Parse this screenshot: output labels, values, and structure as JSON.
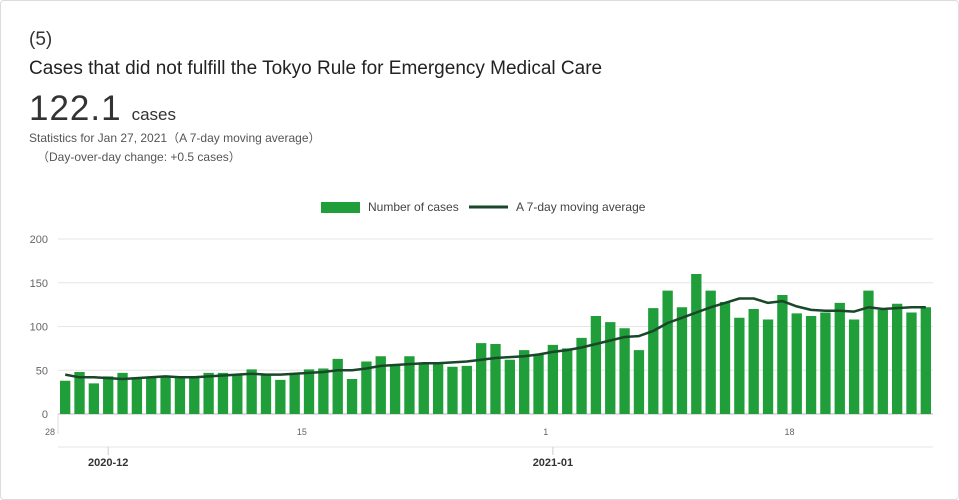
{
  "header": {
    "number": "(5)",
    "title": "Cases that did not fulfill the Tokyo Rule for Emergency Medical Care",
    "value": "122.1",
    "unit": "cases",
    "stats_line": "Statistics for Jan 27, 2021（A 7-day moving average）",
    "change_line": "（Day-over-day change: +0.5 cases）"
  },
  "colors": {
    "bar": "#1f9e3a",
    "line": "#1a472a"
  },
  "chart_data": {
    "type": "bar",
    "legend": [
      {
        "name": "Number of cases",
        "kind": "bar"
      },
      {
        "name": "A 7-day moving average",
        "kind": "line"
      }
    ],
    "legend_position": "top-center",
    "ylim": [
      0,
      200
    ],
    "yticks": [
      0,
      50,
      100,
      150,
      200
    ],
    "grid": true,
    "x_day_ticks": [
      {
        "index": 0,
        "label": "28"
      },
      {
        "index": 17,
        "label": "15"
      },
      {
        "index": 34,
        "label": "1"
      },
      {
        "index": 51,
        "label": "18"
      }
    ],
    "x_month_labels": [
      {
        "index": 3,
        "label": "2020-12"
      },
      {
        "index": 34,
        "label": "2021-01"
      }
    ],
    "dates": [
      "2020-11-28",
      "2020-11-29",
      "2020-11-30",
      "2020-12-01",
      "2020-12-02",
      "2020-12-03",
      "2020-12-04",
      "2020-12-05",
      "2020-12-06",
      "2020-12-07",
      "2020-12-08",
      "2020-12-09",
      "2020-12-10",
      "2020-12-11",
      "2020-12-12",
      "2020-12-13",
      "2020-12-14",
      "2020-12-15",
      "2020-12-16",
      "2020-12-17",
      "2020-12-18",
      "2020-12-19",
      "2020-12-20",
      "2020-12-21",
      "2020-12-22",
      "2020-12-23",
      "2020-12-24",
      "2020-12-25",
      "2020-12-26",
      "2020-12-27",
      "2020-12-28",
      "2020-12-29",
      "2020-12-30",
      "2020-12-31",
      "2021-01-01",
      "2021-01-02",
      "2021-01-03",
      "2021-01-04",
      "2021-01-05",
      "2021-01-06",
      "2021-01-07",
      "2021-01-08",
      "2021-01-09",
      "2021-01-10",
      "2021-01-11",
      "2021-01-12",
      "2021-01-13",
      "2021-01-14",
      "2021-01-15",
      "2021-01-16",
      "2021-01-17",
      "2021-01-18",
      "2021-01-19",
      "2021-01-20",
      "2021-01-21",
      "2021-01-22",
      "2021-01-23",
      "2021-01-24",
      "2021-01-25",
      "2021-01-26",
      "2021-01-27"
    ],
    "series": [
      {
        "name": "Number of cases",
        "type": "bar",
        "values": [
          38,
          48,
          35,
          43,
          47,
          40,
          42,
          43,
          41,
          42,
          47,
          47,
          45,
          51,
          44,
          39,
          45,
          51,
          52,
          63,
          40,
          60,
          66,
          57,
          66,
          57,
          57,
          54,
          55,
          81,
          80,
          62,
          73,
          68,
          79,
          75,
          87,
          112,
          105,
          98,
          73,
          121,
          141,
          122,
          160,
          141,
          128,
          110,
          120,
          108,
          136,
          115,
          112,
          116,
          127,
          108,
          141,
          119,
          126,
          116,
          122
        ]
      },
      {
        "name": "A 7-day moving average",
        "type": "line",
        "values": [
          45,
          42,
          42,
          41,
          40,
          41,
          42,
          43,
          42,
          42,
          43,
          44,
          45,
          46,
          45,
          45,
          46,
          47,
          48,
          50,
          50,
          52,
          55,
          56,
          57,
          58,
          58,
          59,
          60,
          62,
          64,
          65,
          66,
          68,
          71,
          73,
          76,
          80,
          84,
          88,
          89,
          95,
          104,
          110,
          116,
          122,
          127,
          132,
          132,
          127,
          129,
          123,
          119,
          118,
          118,
          117,
          122,
          120,
          121,
          122,
          122
        ]
      }
    ],
    "title": "",
    "xlabel": "",
    "ylabel": ""
  }
}
